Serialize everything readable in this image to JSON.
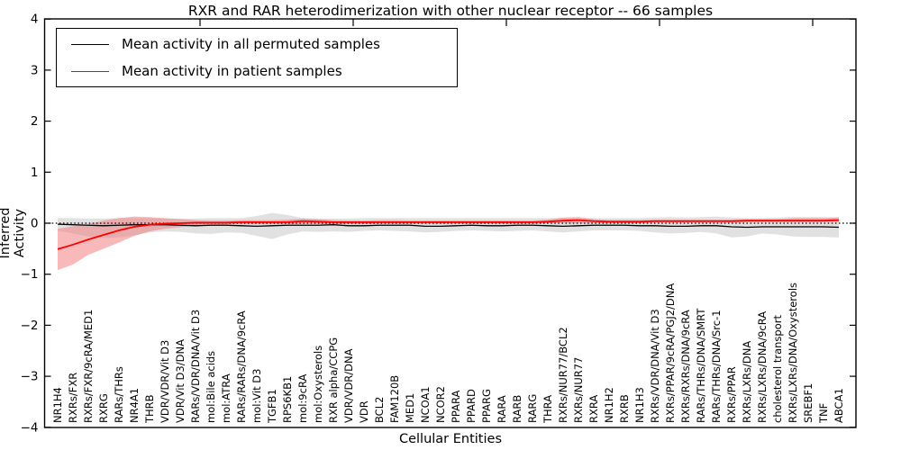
{
  "title": "RXR and RAR heterodimerization with other nuclear receptor -- 66 samples",
  "legend": {
    "items": [
      {
        "label": "Mean activity in all permuted samples",
        "color": "#000000"
      },
      {
        "label": "Mean activity in patient samples",
        "color": "#ff0000"
      }
    ]
  },
  "chart_data": {
    "type": "line",
    "title": "RXR and RAR heterodimerization with other nuclear receptor -- 66 samples",
    "xlabel": "Cellular Entities",
    "ylabel": "Inferred Activity",
    "ylim": [
      -4,
      4
    ],
    "yticks": [
      4,
      3,
      2,
      1,
      0,
      -1,
      -2,
      -3,
      -4
    ],
    "grid": false,
    "legend_position": "upper left",
    "reference_line": {
      "y": 0,
      "style": "dotted",
      "color": "#000000"
    },
    "categories": [
      "NR1H4",
      "RXRs/FXR",
      "RXRs/FXR/9cRA/MED1",
      "RXRG",
      "RARs/THRs",
      "NR4A1",
      "THRB",
      "VDR/VDR/Vit D3",
      "VDR/Vit D3/DNA",
      "RARs/VDR/DNA/Vit D3",
      "mol:Bile acids",
      "mol:ATRA",
      "RARs/RARs/DNA/9cRA",
      "mol:Vit D3",
      "TGFB1",
      "RPS6KB1",
      "mol:9cRA",
      "mol:Oxysterols",
      "RXR alpha/CCPG",
      "VDR/VDR/DNA",
      "VDR",
      "BCL2",
      "FAM120B",
      "MED1",
      "NCOA1",
      "NCOR2",
      "PPARA",
      "PPARD",
      "PPARG",
      "RARA",
      "RARB",
      "RARG",
      "THRA",
      "RXRs/NUR77/BCL2",
      "RXRs/NUR77",
      "RXRA",
      "NR1H2",
      "RXRB",
      "NR1H3",
      "RXRs/VDR/DNA/Vit D3",
      "RXRs/PPAR/9cRA/PGJ2/DNA",
      "RXRs/RXRs/DNA/9cRA",
      "RARs/THRs/DNA/SMRT",
      "RARs/THRs/DNA/Src-1",
      "RXRs/PPAR",
      "RXRs/LXRs/DNA",
      "RXRs/LXRs/DNA/9cRA",
      "cholesterol transport",
      "RXRs/LXRs/DNA/Oxysterols",
      "SREBF1",
      "TNF",
      "ABCA1"
    ],
    "series": [
      {
        "name": "Mean activity in all permuted samples",
        "color": "#000000",
        "values": [
          -0.02,
          -0.03,
          -0.04,
          -0.05,
          -0.04,
          -0.03,
          -0.03,
          -0.03,
          -0.04,
          -0.05,
          -0.04,
          -0.04,
          -0.05,
          -0.06,
          -0.05,
          -0.04,
          -0.04,
          -0.04,
          -0.03,
          -0.05,
          -0.05,
          -0.04,
          -0.04,
          -0.04,
          -0.06,
          -0.06,
          -0.05,
          -0.04,
          -0.05,
          -0.05,
          -0.04,
          -0.04,
          -0.05,
          -0.06,
          -0.05,
          -0.04,
          -0.04,
          -0.04,
          -0.05,
          -0.05,
          -0.06,
          -0.06,
          -0.05,
          -0.05,
          -0.07,
          -0.08,
          -0.07,
          -0.07,
          -0.07,
          -0.07,
          -0.07,
          -0.08
        ],
        "band": {
          "color": "#aaaaaa",
          "upper": [
            0.1,
            0.1,
            0.09,
            0.09,
            0.1,
            0.1,
            0.1,
            0.09,
            0.09,
            0.09,
            0.1,
            0.1,
            0.1,
            0.14,
            0.2,
            0.16,
            0.1,
            0.09,
            0.09,
            0.09,
            0.1,
            0.1,
            0.1,
            0.1,
            0.1,
            0.1,
            0.1,
            0.1,
            0.1,
            0.1,
            0.1,
            0.1,
            0.1,
            0.1,
            0.1,
            0.1,
            0.1,
            0.1,
            0.1,
            0.11,
            0.12,
            0.11,
            0.12,
            0.13,
            0.11,
            0.1,
            0.1,
            0.11,
            0.12,
            0.12,
            0.12,
            0.12
          ],
          "lower": [
            -0.15,
            -0.2,
            -0.26,
            -0.29,
            -0.28,
            -0.24,
            -0.18,
            -0.16,
            -0.17,
            -0.2,
            -0.21,
            -0.18,
            -0.19,
            -0.25,
            -0.31,
            -0.22,
            -0.16,
            -0.17,
            -0.16,
            -0.17,
            -0.15,
            -0.14,
            -0.15,
            -0.16,
            -0.18,
            -0.17,
            -0.15,
            -0.14,
            -0.15,
            -0.16,
            -0.15,
            -0.14,
            -0.16,
            -0.18,
            -0.16,
            -0.14,
            -0.14,
            -0.14,
            -0.15,
            -0.18,
            -0.2,
            -0.19,
            -0.17,
            -0.2,
            -0.28,
            -0.26,
            -0.2,
            -0.22,
            -0.26,
            -0.27,
            -0.27,
            -0.28
          ]
        }
      },
      {
        "name": "Mean activity in patient samples",
        "color": "#ff0000",
        "values": [
          -0.51,
          -0.42,
          -0.32,
          -0.23,
          -0.14,
          -0.07,
          -0.03,
          -0.01,
          0.0,
          0.01,
          0.01,
          0.01,
          0.02,
          0.02,
          0.02,
          0.02,
          0.04,
          0.03,
          0.02,
          0.02,
          0.02,
          0.02,
          0.02,
          0.02,
          0.02,
          0.02,
          0.02,
          0.02,
          0.02,
          0.02,
          0.02,
          0.02,
          0.03,
          0.05,
          0.06,
          0.04,
          0.03,
          0.03,
          0.03,
          0.04,
          0.04,
          0.04,
          0.04,
          0.04,
          0.04,
          0.05,
          0.05,
          0.05,
          0.05,
          0.05,
          0.05,
          0.06
        ],
        "band": {
          "color": "#f08080",
          "upper": [
            -0.11,
            -0.06,
            -0.02,
            0.05,
            0.1,
            0.13,
            0.12,
            0.1,
            0.08,
            0.06,
            0.05,
            0.05,
            0.06,
            0.06,
            0.06,
            0.07,
            0.09,
            0.08,
            0.06,
            0.05,
            0.05,
            0.06,
            0.06,
            0.05,
            0.05,
            0.05,
            0.05,
            0.05,
            0.05,
            0.05,
            0.05,
            0.05,
            0.07,
            0.11,
            0.12,
            0.08,
            0.06,
            0.06,
            0.06,
            0.07,
            0.07,
            0.07,
            0.07,
            0.07,
            0.07,
            0.08,
            0.08,
            0.08,
            0.1,
            0.1,
            0.1,
            0.11
          ],
          "lower": [
            -0.92,
            -0.81,
            -0.62,
            -0.5,
            -0.38,
            -0.25,
            -0.16,
            -0.11,
            -0.08,
            -0.05,
            -0.03,
            -0.03,
            -0.02,
            -0.02,
            -0.02,
            -0.02,
            -0.01,
            -0.01,
            -0.02,
            -0.02,
            -0.02,
            -0.01,
            -0.01,
            -0.01,
            -0.01,
            -0.01,
            -0.01,
            -0.01,
            -0.01,
            -0.01,
            -0.01,
            -0.01,
            0.0,
            0.0,
            0.0,
            0.0,
            0.0,
            0.0,
            0.0,
            0.01,
            0.01,
            0.01,
            0.01,
            0.01,
            0.01,
            0.02,
            0.02,
            0.02,
            0.02,
            0.02,
            0.02,
            0.02
          ]
        }
      }
    ]
  }
}
